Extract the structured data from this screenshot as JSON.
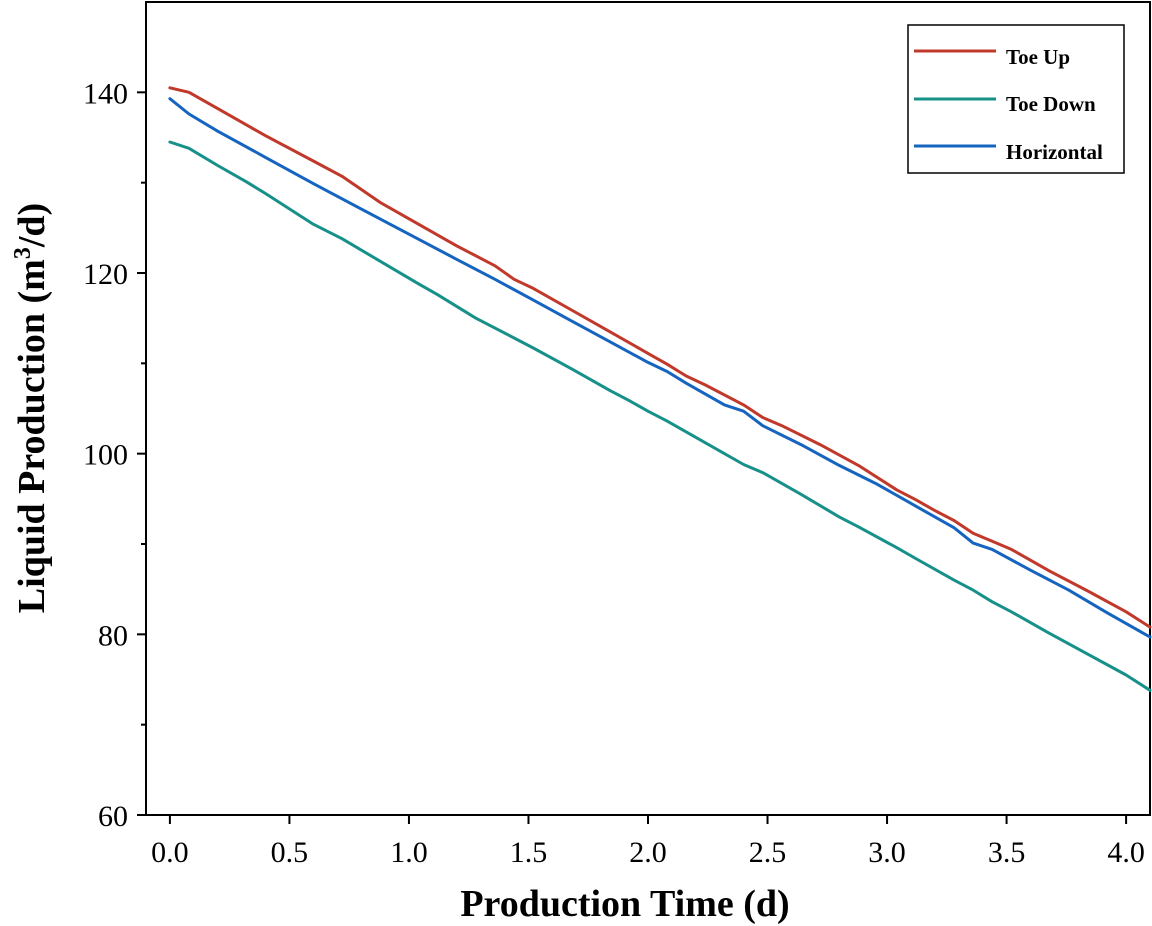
{
  "chart_data": {
    "type": "line",
    "title": "",
    "xlabel": "Production Time (d)",
    "ylabel_main": "Liquid Production (m",
    "ylabel_sup": "3",
    "ylabel_tail": "/d)",
    "xlim": [
      -0.1,
      4.1
    ],
    "ylim": [
      60,
      150
    ],
    "xticks": [
      0.0,
      0.5,
      1.0,
      1.5,
      2.0,
      2.5,
      3.0,
      3.5,
      4.0
    ],
    "xtick_labels": [
      "0.0",
      "0.5",
      "1.0",
      "1.5",
      "2.0",
      "2.5",
      "3.0",
      "3.5",
      "4.0"
    ],
    "yticks": [
      60,
      80,
      100,
      120,
      140
    ],
    "ytick_labels": [
      "60",
      "80",
      "100",
      "120",
      "140"
    ],
    "y_minor_ticks": [
      70,
      90,
      110,
      130
    ],
    "legend_position": "top-right",
    "series": [
      {
        "name": "Toe Up",
        "color": "#c0392b",
        "x": [
          0.0,
          0.08,
          0.2,
          0.4,
          0.6,
          0.72,
          0.88,
          1.0,
          1.2,
          1.36,
          1.44,
          1.52,
          1.68,
          1.84,
          2.0,
          2.08,
          2.16,
          2.24,
          2.4,
          2.48,
          2.56,
          2.72,
          2.88,
          3.04,
          3.12,
          3.2,
          3.28,
          3.36,
          3.44,
          3.52,
          3.68,
          3.84,
          4.0,
          4.1
        ],
        "values": [
          140.5,
          140.0,
          138.2,
          135.2,
          132.4,
          130.7,
          127.8,
          126.0,
          123.0,
          120.8,
          119.3,
          118.3,
          115.9,
          113.5,
          111.1,
          109.9,
          108.6,
          107.6,
          105.4,
          104.0,
          103.1,
          101.0,
          98.7,
          96.0,
          94.9,
          93.7,
          92.6,
          91.2,
          90.3,
          89.4,
          87.0,
          84.8,
          82.5,
          80.8
        ]
      },
      {
        "name": "Toe Down",
        "color": "#17908a",
        "x": [
          0.0,
          0.08,
          0.2,
          0.32,
          0.4,
          0.6,
          0.72,
          0.88,
          1.04,
          1.12,
          1.28,
          1.44,
          1.52,
          1.68,
          1.84,
          1.92,
          2.0,
          2.08,
          2.24,
          2.4,
          2.48,
          2.64,
          2.8,
          2.88,
          3.04,
          3.12,
          3.28,
          3.36,
          3.44,
          3.52,
          3.68,
          3.84,
          4.0,
          4.1
        ],
        "values": [
          134.5,
          133.8,
          131.9,
          130.1,
          128.8,
          125.4,
          123.8,
          121.3,
          118.8,
          117.6,
          115.0,
          112.8,
          111.7,
          109.4,
          107.0,
          105.9,
          104.7,
          103.6,
          101.2,
          98.8,
          97.9,
          95.5,
          93.0,
          91.9,
          89.6,
          88.4,
          86.0,
          84.9,
          83.6,
          82.5,
          80.1,
          77.8,
          75.5,
          73.8
        ]
      },
      {
        "name": "Horizontal",
        "color": "#1565c0",
        "x": [
          0.0,
          0.08,
          0.2,
          0.4,
          0.6,
          0.8,
          1.0,
          1.2,
          1.36,
          1.52,
          1.68,
          1.84,
          2.0,
          2.08,
          2.16,
          2.32,
          2.4,
          2.48,
          2.64,
          2.8,
          2.96,
          3.12,
          3.2,
          3.28,
          3.36,
          3.44,
          3.6,
          3.76,
          3.92,
          4.1
        ],
        "values": [
          139.3,
          137.6,
          135.7,
          132.8,
          129.9,
          127.1,
          124.3,
          121.5,
          119.3,
          117.0,
          114.7,
          112.4,
          110.1,
          109.1,
          107.8,
          105.4,
          104.7,
          103.1,
          101.0,
          98.7,
          96.6,
          94.2,
          93.0,
          91.8,
          90.1,
          89.4,
          87.1,
          84.9,
          82.4,
          79.7
        ]
      }
    ]
  }
}
